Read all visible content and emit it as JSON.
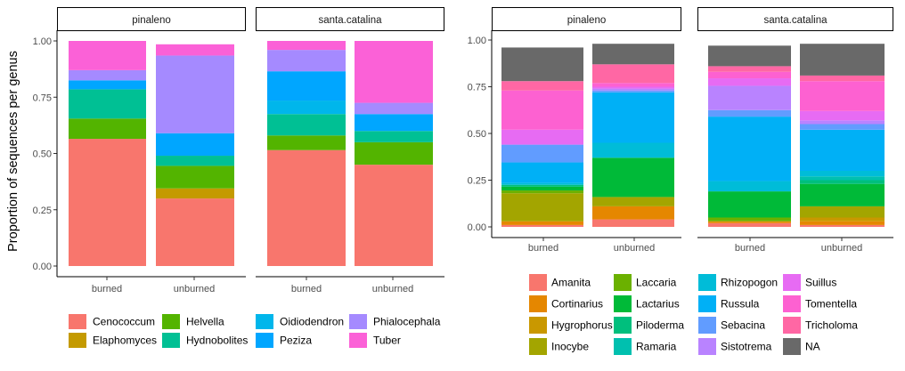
{
  "chart_data": [
    {
      "type": "bar",
      "stacked": true,
      "facets": [
        "pinaleno",
        "santa.catalina"
      ],
      "categories": [
        "burned",
        "unburned"
      ],
      "ylabel": "Proportion of sequences per genus",
      "xlabel": "",
      "ylim": [
        0,
        1
      ],
      "yticks": [
        "0.00",
        "0.25",
        "0.50",
        "0.75",
        "1.00"
      ],
      "legend_position": "bottom",
      "series": [
        {
          "name": "Cenococcum",
          "color": "#F8766D",
          "values": {
            "pinaleno": [
              0.565,
              0.3
            ],
            "santa.catalina": [
              0.515,
              0.45
            ]
          }
        },
        {
          "name": "Elaphomyces",
          "color": "#C49A00",
          "values": {
            "pinaleno": [
              0,
              0.045
            ],
            "santa.catalina": [
              0,
              0
            ]
          }
        },
        {
          "name": "Helvella",
          "color": "#53B400",
          "values": {
            "pinaleno": [
              0.09,
              0.1
            ],
            "santa.catalina": [
              0.065,
              0.1
            ]
          }
        },
        {
          "name": "Hydnobolites",
          "color": "#00C094",
          "values": {
            "pinaleno": [
              0.13,
              0.045
            ],
            "santa.catalina": [
              0.095,
              0.05
            ]
          }
        },
        {
          "name": "Oidiodendron",
          "color": "#00B6EB",
          "values": {
            "pinaleno": [
              0,
              0
            ],
            "santa.catalina": [
              0.06,
              0
            ]
          }
        },
        {
          "name": "Peziza",
          "color": "#00A6FF",
          "values": {
            "pinaleno": [
              0.04,
              0.1
            ],
            "santa.catalina": [
              0.13,
              0.075
            ]
          }
        },
        {
          "name": "Phialocephala",
          "color": "#A58AFF",
          "values": {
            "pinaleno": [
              0.045,
              0.345
            ],
            "santa.catalina": [
              0.095,
              0.05
            ]
          }
        },
        {
          "name": "Tuber",
          "color": "#FB61D7",
          "values": {
            "pinaleno": [
              0.13,
              0.05
            ],
            "santa.catalina": [
              0.04,
              0.275
            ]
          }
        }
      ]
    },
    {
      "type": "bar",
      "stacked": true,
      "facets": [
        "pinaleno",
        "santa.catalina"
      ],
      "categories": [
        "burned",
        "unburned"
      ],
      "ylabel": "",
      "xlabel": "",
      "ylim": [
        0,
        1
      ],
      "yticks": [
        "0.00",
        "0.25",
        "0.50",
        "0.75",
        "1.00"
      ],
      "legend_position": "bottom",
      "series": [
        {
          "name": "Amanita",
          "color": "#F8766D",
          "values": {
            "pinaleno": [
              0.01,
              0.04
            ],
            "santa.catalina": [
              0.02,
              0.01
            ]
          }
        },
        {
          "name": "Cortinarius",
          "color": "#E58700",
          "values": {
            "pinaleno": [
              0.02,
              0.07
            ],
            "santa.catalina": [
              0.01,
              0.02
            ]
          }
        },
        {
          "name": "Hygrophorus",
          "color": "#C99800",
          "values": {
            "pinaleno": [
              0,
              0
            ],
            "santa.catalina": [
              0,
              0.02
            ]
          }
        },
        {
          "name": "Inocybe",
          "color": "#A3A500",
          "values": {
            "pinaleno": [
              0.15,
              0.05
            ],
            "santa.catalina": [
              0,
              0.06
            ]
          }
        },
        {
          "name": "Laccaria",
          "color": "#6BB100",
          "values": {
            "pinaleno": [
              0.015,
              0
            ],
            "santa.catalina": [
              0.02,
              0
            ]
          }
        },
        {
          "name": "Lactarius",
          "color": "#00BA38",
          "values": {
            "pinaleno": [
              0.02,
              0.21
            ],
            "santa.catalina": [
              0.14,
              0.12
            ]
          }
        },
        {
          "name": "Piloderma",
          "color": "#00BF7D",
          "values": {
            "pinaleno": [
              0.01,
              0
            ],
            "santa.catalina": [
              0,
              0.02
            ]
          }
        },
        {
          "name": "Ramaria",
          "color": "#00C0AF",
          "values": {
            "pinaleno": [
              0,
              0
            ],
            "santa.catalina": [
              0,
              0.02
            ]
          }
        },
        {
          "name": "Rhizopogon",
          "color": "#00BCD8",
          "values": {
            "pinaleno": [
              0.01,
              0.08
            ],
            "santa.catalina": [
              0.055,
              0.03
            ]
          }
        },
        {
          "name": "Russula",
          "color": "#00B0F6",
          "values": {
            "pinaleno": [
              0.11,
              0.27
            ],
            "santa.catalina": [
              0.345,
              0.22
            ]
          }
        },
        {
          "name": "Sebacina",
          "color": "#619CFF",
          "values": {
            "pinaleno": [
              0.095,
              0.01
            ],
            "santa.catalina": [
              0.035,
              0.03
            ]
          }
        },
        {
          "name": "Sistotrema",
          "color": "#B983FF",
          "values": {
            "pinaleno": [
              0,
              0.01
            ],
            "santa.catalina": [
              0.13,
              0.02
            ]
          }
        },
        {
          "name": "Suillus",
          "color": "#E76BF3",
          "values": {
            "pinaleno": [
              0.08,
              0.01
            ],
            "santa.catalina": [
              0.04,
              0.05
            ]
          }
        },
        {
          "name": "Tomentella",
          "color": "#FD61D1",
          "values": {
            "pinaleno": [
              0.21,
              0.02
            ],
            "santa.catalina": [
              0.035,
              0.16
            ]
          }
        },
        {
          "name": "Tricholoma",
          "color": "#FF67A4",
          "values": {
            "pinaleno": [
              0.05,
              0.1
            ],
            "santa.catalina": [
              0.03,
              0.03
            ]
          }
        },
        {
          "name": "NA",
          "color": "#696969",
          "values": {
            "pinaleno": [
              0.18,
              0.11
            ],
            "santa.catalina": [
              0.11,
              0.17
            ]
          }
        }
      ]
    }
  ]
}
